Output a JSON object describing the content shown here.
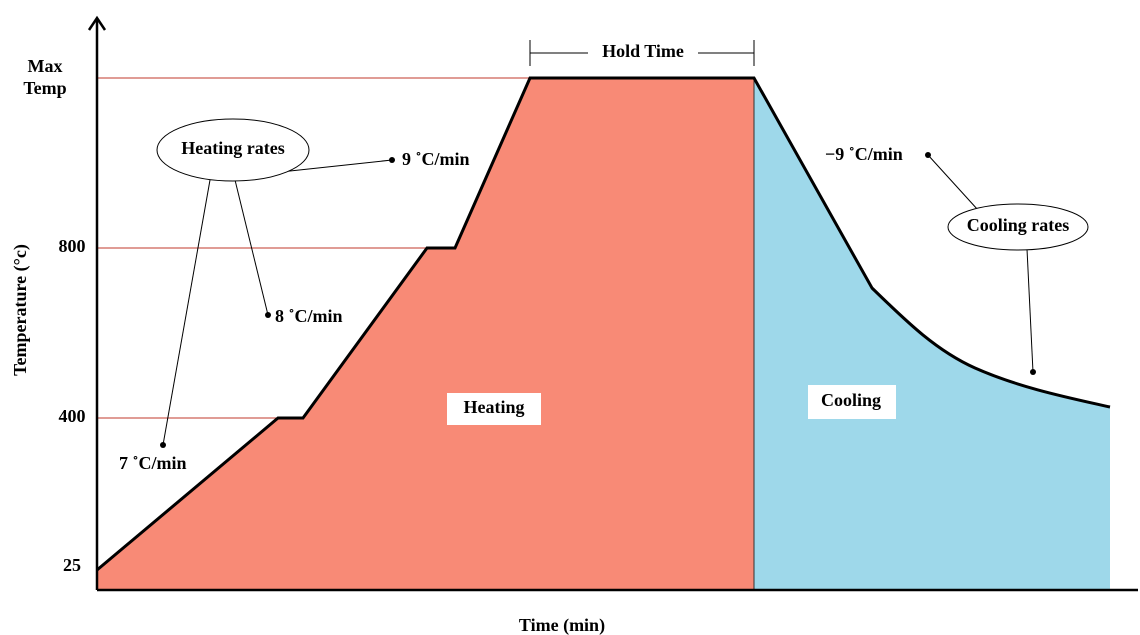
{
  "axes": {
    "y_label": "Temperature (°c)",
    "x_label": "Time (min)",
    "y_ticks": [
      "25",
      "400",
      "800"
    ],
    "max_temp": [
      "Max",
      "Temp"
    ]
  },
  "annotations": {
    "hold_time": "Hold Time",
    "heating_rates": "Heating rates",
    "rate_9": "9 ˚C/min",
    "rate_8": "8 ˚C/min",
    "rate_7": "7 ˚C/min",
    "cooling_rates": "Cooling rates",
    "rate_minus_9": "−9 ˚C/min"
  },
  "regions": {
    "heating": "Heating",
    "cooling": "Cooling"
  }
}
